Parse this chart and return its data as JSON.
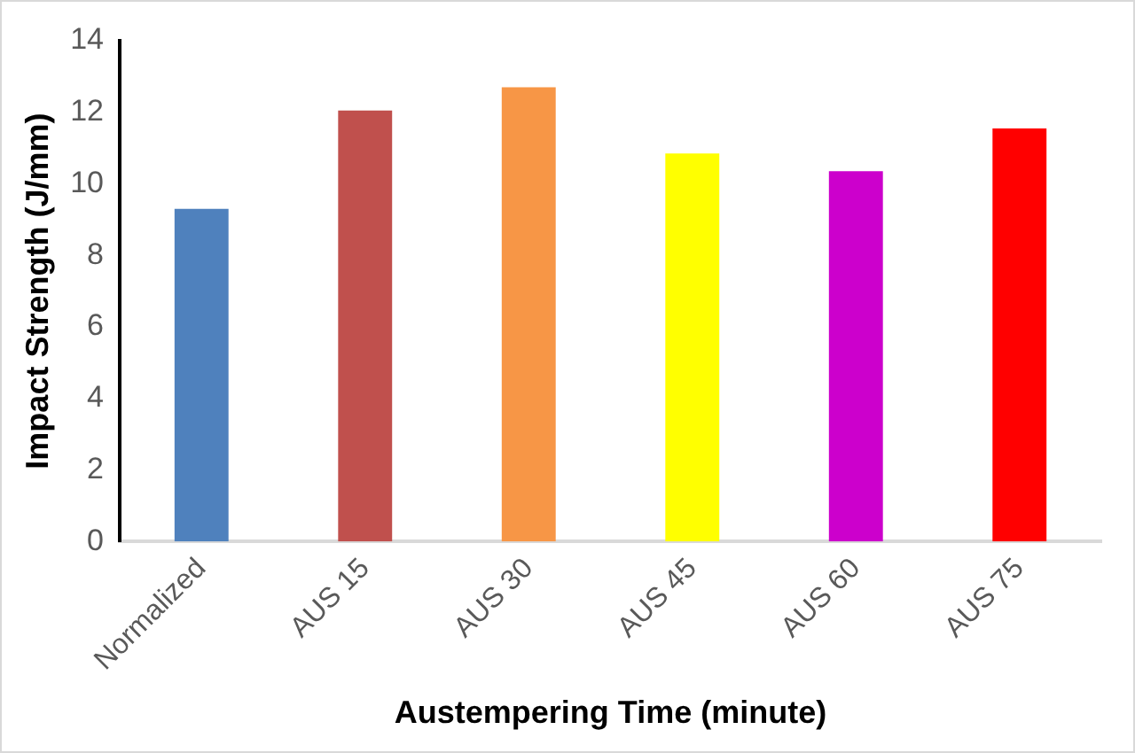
{
  "chart_data": {
    "type": "bar",
    "xlabel": "Austempering Time (minute)",
    "ylabel": "Impact Strength (J/mm)",
    "categories": [
      "Normalized",
      "AUS 15",
      "AUS 30",
      "AUS 45",
      "AUS 60",
      "AUS 75"
    ],
    "values": [
      9.3,
      12.05,
      12.7,
      10.85,
      10.35,
      11.55
    ],
    "colors": [
      "#4f81bd",
      "#c0504d",
      "#f79646",
      "#ffff00",
      "#cc00cc",
      "#ff0000"
    ],
    "ylim": [
      0,
      14
    ],
    "yticks": [
      0,
      2,
      4,
      6,
      8,
      10,
      12,
      14
    ],
    "grid": false,
    "legend": false
  }
}
